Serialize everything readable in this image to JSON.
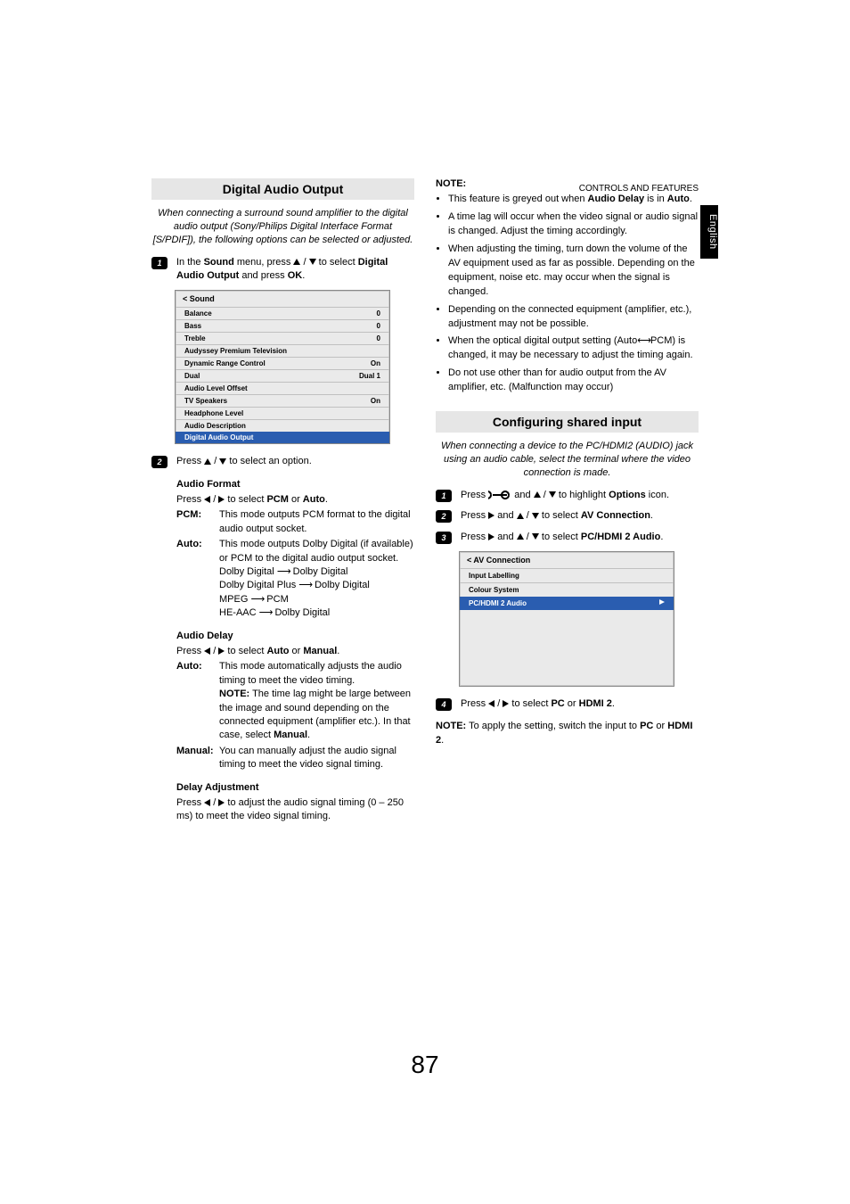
{
  "running_head": "CONTROLS AND FEATURES",
  "side_tab": "English",
  "page_number": "87",
  "left": {
    "section_title": "Digital Audio Output",
    "intro": "When connecting a surround sound amplifier to the digital audio output (Sony/Philips Digital Interface Format [S/PDIF]), the following options can be selected or adjusted.",
    "step1_pre": "In the ",
    "step1_menu": "Sound",
    "step1_mid": " menu, press ",
    "step1_sel": " to select ",
    "step1_target": "Digital Audio Output",
    "step1_post": " and press ",
    "step1_ok": "OK",
    "menu": {
      "head": "< Sound",
      "rows": [
        {
          "l": "Balance",
          "r": "0"
        },
        {
          "l": "Bass",
          "r": "0"
        },
        {
          "l": "Treble",
          "r": "0"
        },
        {
          "l": "Audyssey Premium Television",
          "r": ""
        },
        {
          "l": "Dynamic Range Control",
          "r": "On"
        },
        {
          "l": "Dual",
          "r": "Dual 1"
        },
        {
          "l": "Audio Level Offset",
          "r": ""
        },
        {
          "l": "TV Speakers",
          "r": "On"
        },
        {
          "l": "Headphone Level",
          "r": ""
        },
        {
          "l": "Audio Description",
          "r": ""
        }
      ],
      "highlight": "Digital Audio Output"
    },
    "step2_pre": "Press ",
    "step2_post": " to select an option.",
    "audio_format_h": "Audio Format",
    "audio_format_line_pre": "Press ",
    "audio_format_line_mid": " to select ",
    "audio_format_pcm": "PCM",
    "audio_format_or": " or ",
    "audio_format_auto": "Auto",
    "pcm_k": "PCM:",
    "pcm_v": "This mode outputs PCM format to the digital audio output socket.",
    "auto_k": "Auto:",
    "auto_v": "This mode outputs Dolby Digital (if available) or PCM to the digital audio output socket.",
    "auto_l1_a": "Dolby Digital ",
    "auto_l1_b": " Dolby Digital",
    "auto_l2_a": "Dolby Digital Plus ",
    "auto_l2_b": " Dolby Digital",
    "auto_l3_a": "MPEG ",
    "auto_l3_b": " PCM",
    "auto_l4_a": "HE-AAC ",
    "auto_l4_b": " Dolby Digital",
    "audio_delay_h": "Audio Delay",
    "audio_delay_line_pre": "Press ",
    "audio_delay_line_mid": " to select ",
    "audio_delay_auto": "Auto",
    "audio_delay_or": " or ",
    "audio_delay_manual": "Manual",
    "delay_auto_k": "Auto:",
    "delay_auto_v_pre": "This mode automatically adjusts the audio timing to meet the video timing.",
    "delay_auto_note_label": "NOTE:",
    "delay_auto_note": " The time lag might be large between the image and sound depending on the connected equipment (amplifier etc.). In that case, select ",
    "delay_auto_note_manual": "Manual",
    "delay_manual_k": "Manual:",
    "delay_manual_v": "You can manually adjust the audio signal timing to meet the video signal timing.",
    "delay_adj_h": "Delay Adjustment",
    "delay_adj_line_pre": "Press ",
    "delay_adj_line_post": " to adjust the audio signal timing (0 – 250 ms) to meet the video signal timing."
  },
  "right": {
    "note_h": "NOTE:",
    "notes": [
      {
        "pre": "This feature is greyed out when ",
        "b": "Audio Delay",
        "post": " is in ",
        "b2": "Auto",
        "post2": "."
      },
      {
        "text": "A time lag will occur when the video signal or audio signal is changed. Adjust the timing accordingly."
      },
      {
        "text": "When adjusting the timing, turn down the volume of the AV equipment used as far as possible. Depending on the equipment, noise etc. may occur when the signal is changed."
      },
      {
        "text": "Depending on the connected equipment (amplifier, etc.), adjustment may not be possible."
      },
      {
        "pre": "When the optical digital output setting (Auto",
        "arrow": true,
        "post": "PCM) is changed, it may be necessary to adjust the timing again."
      },
      {
        "text": "Do not use other than for audio output from the AV amplifier, etc. (Malfunction may occur)"
      }
    ],
    "section_title": "Configuring shared input",
    "intro": "When connecting a device to the PC/HDMI2 (AUDIO) jack using an audio cable, select the terminal where the video connection is made.",
    "step1_pre": "Press ",
    "step1_mid": " and ",
    "step1_post": " to highlight ",
    "step1_target": "Options",
    "step1_end": " icon.",
    "step2_pre": "Press ",
    "step2_mid": " and  ",
    "step2_post": " to select ",
    "step2_target": "AV Connection",
    "step3_pre": "Press ",
    "step3_mid": " and  ",
    "step3_post": " to select ",
    "step3_target": "PC/HDMI 2 Audio",
    "av_menu": {
      "head": "< AV Connection",
      "rows": [
        "Input Labelling",
        "Colour System"
      ],
      "highlight": "PC/HDMI 2 Audio"
    },
    "step4_pre": "Press ",
    "step4_mid": " to select ",
    "step4_pc": "PC",
    "step4_or": " or ",
    "step4_hdmi": "HDMI 2",
    "footnote_pre": "NOTE:",
    "footnote_mid": " To apply the setting, switch the input to ",
    "footnote_pc": "PC",
    "footnote_or": " or ",
    "footnote_hdmi": "HDMI 2",
    "footnote_end": "."
  }
}
